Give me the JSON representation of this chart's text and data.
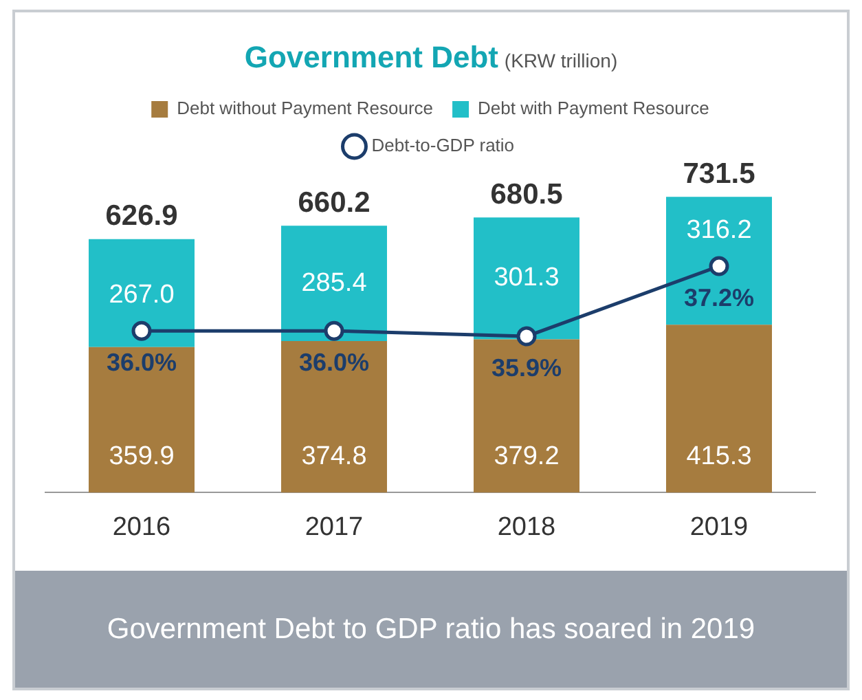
{
  "chart_data": {
    "type": "bar",
    "title": "Government Debt",
    "subtitle": "(KRW trillion)",
    "categories": [
      "2016",
      "2017",
      "2018",
      "2019"
    ],
    "stacked": true,
    "legend": "top",
    "tick_labels": "x",
    "marker": "circle",
    "series": [
      {
        "name": "Debt without Payment Resource",
        "color": "#a67c3f",
        "values": [
          359.9,
          374.8,
          379.2,
          415.3
        ],
        "value_labels": [
          "359.9",
          "374.8",
          "379.2",
          "415.3"
        ]
      },
      {
        "name": "Debt with Payment Resource",
        "color": "#22bfc8",
        "values": [
          267.0,
          285.4,
          301.3,
          316.2
        ],
        "value_labels": [
          "267.0",
          "285.4",
          "301.3",
          "316.2"
        ]
      },
      {
        "name": "Debt-to-GDP ratio",
        "type": "line",
        "axis": "y2",
        "color": "#1c3d6b",
        "values": [
          36.0,
          36.0,
          35.9,
          37.2
        ],
        "value_labels": [
          "36.0%",
          "36.0%",
          "35.9%",
          "37.2%"
        ]
      }
    ],
    "totals": [
      "626.9",
      "660.2",
      "680.5",
      "731.5"
    ],
    "annotations": [
      "Government Debt to GDP ratio has soared in 2019"
    ]
  }
}
